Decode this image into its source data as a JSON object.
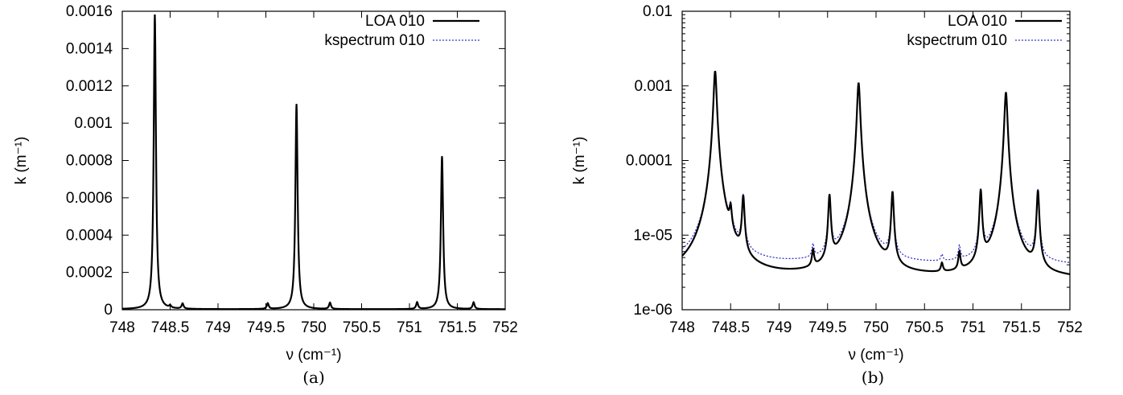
{
  "chart_data": [
    {
      "id": "a",
      "type": "line",
      "caption": "(a)",
      "xlabel": "ν (cm⁻¹)",
      "ylabel": "k (m⁻¹)",
      "xlim": [
        748,
        752
      ],
      "ylim": [
        0,
        0.0016
      ],
      "yscale": "linear",
      "xticks": [
        "748",
        "748.5",
        "749",
        "749.5",
        "750",
        "750.5",
        "751",
        "751.5",
        "752"
      ],
      "yticks": [
        "0",
        "0.0002",
        "0.0004",
        "0.0006",
        "0.0008",
        "0.001",
        "0.0012",
        "0.0014",
        "0.0016"
      ],
      "legend_position": "top-right",
      "series": [
        {
          "name": "LOA 010",
          "style": "solid",
          "color": "#000000",
          "peaks": [
            {
              "x": 748.34,
              "y": 0.00158,
              "w": 0.014
            },
            {
              "x": 748.5,
              "y": 1.2e-05,
              "w": 0.012
            },
            {
              "x": 748.63,
              "y": 2.8e-05,
              "w": 0.012
            },
            {
              "x": 749.52,
              "y": 3e-05,
              "w": 0.012
            },
            {
              "x": 749.82,
              "y": 0.0011,
              "w": 0.014
            },
            {
              "x": 750.17,
              "y": 3.4e-05,
              "w": 0.012
            },
            {
              "x": 751.08,
              "y": 3.6e-05,
              "w": 0.012
            },
            {
              "x": 751.34,
              "y": 0.00082,
              "w": 0.014
            },
            {
              "x": 751.67,
              "y": 3.6e-05,
              "w": 0.012
            }
          ],
          "baseline": 2.5e-06
        },
        {
          "name": "kspectrum 010",
          "style": "dotted",
          "color": "#3333cc",
          "peaks": [
            {
              "x": 748.34,
              "y": 0.00158,
              "w": 0.014
            },
            {
              "x": 748.5,
              "y": 1.2e-05,
              "w": 0.012
            },
            {
              "x": 748.63,
              "y": 2.8e-05,
              "w": 0.012
            },
            {
              "x": 749.52,
              "y": 3e-05,
              "w": 0.012
            },
            {
              "x": 749.82,
              "y": 0.0011,
              "w": 0.014
            },
            {
              "x": 750.17,
              "y": 3.4e-05,
              "w": 0.012
            },
            {
              "x": 751.08,
              "y": 3.6e-05,
              "w": 0.012
            },
            {
              "x": 751.34,
              "y": 0.00082,
              "w": 0.014
            },
            {
              "x": 751.67,
              "y": 3.6e-05,
              "w": 0.012
            }
          ],
          "baseline": 3.8e-06
        }
      ]
    },
    {
      "id": "b",
      "type": "line",
      "caption": "(b)",
      "xlabel": "ν (cm⁻¹)",
      "ylabel": "k (m⁻¹)",
      "xlim": [
        748,
        752
      ],
      "ylim": [
        1e-06,
        0.01
      ],
      "yscale": "log",
      "xticks": [
        "748",
        "748.5",
        "749",
        "749.5",
        "750",
        "750.5",
        "751",
        "751.5",
        "752"
      ],
      "yticks": [
        "1e-06",
        "1e-05",
        "0.0001",
        "0.001",
        "0.01"
      ],
      "legend_position": "top-right",
      "series": [
        {
          "name": "LOA 010",
          "style": "solid",
          "color": "#000000",
          "peaks": [
            {
              "x": 748.34,
              "y": 0.00158,
              "w": 0.014
            },
            {
              "x": 748.5,
              "y": 1.2e-05,
              "w": 0.012
            },
            {
              "x": 748.63,
              "y": 2.8e-05,
              "w": 0.012
            },
            {
              "x": 749.35,
              "y": 2.5e-06,
              "w": 0.012
            },
            {
              "x": 749.52,
              "y": 3e-05,
              "w": 0.012
            },
            {
              "x": 749.82,
              "y": 0.0011,
              "w": 0.014
            },
            {
              "x": 750.17,
              "y": 3.4e-05,
              "w": 0.012
            },
            {
              "x": 750.68,
              "y": 1e-06,
              "w": 0.012
            },
            {
              "x": 750.86,
              "y": 2.5e-06,
              "w": 0.012
            },
            {
              "x": 751.08,
              "y": 3.6e-05,
              "w": 0.012
            },
            {
              "x": 751.34,
              "y": 0.00082,
              "w": 0.014
            },
            {
              "x": 751.67,
              "y": 3.6e-05,
              "w": 0.012
            }
          ],
          "baseline": 2.5e-06
        },
        {
          "name": "kspectrum 010",
          "style": "dotted",
          "color": "#3333cc",
          "peaks": [
            {
              "x": 748.34,
              "y": 0.00158,
              "w": 0.014
            },
            {
              "x": 748.5,
              "y": 1.2e-05,
              "w": 0.012
            },
            {
              "x": 748.63,
              "y": 2.8e-05,
              "w": 0.012
            },
            {
              "x": 749.35,
              "y": 2.5e-06,
              "w": 0.012
            },
            {
              "x": 749.52,
              "y": 3e-05,
              "w": 0.012
            },
            {
              "x": 749.82,
              "y": 0.0011,
              "w": 0.014
            },
            {
              "x": 750.17,
              "y": 3.4e-05,
              "w": 0.012
            },
            {
              "x": 750.68,
              "y": 1e-06,
              "w": 0.012
            },
            {
              "x": 750.86,
              "y": 2.5e-06,
              "w": 0.012
            },
            {
              "x": 751.08,
              "y": 3.6e-05,
              "w": 0.012
            },
            {
              "x": 751.34,
              "y": 0.00082,
              "w": 0.014
            },
            {
              "x": 751.67,
              "y": 3.6e-05,
              "w": 0.012
            }
          ],
          "baseline": 3.8e-06
        }
      ]
    }
  ]
}
